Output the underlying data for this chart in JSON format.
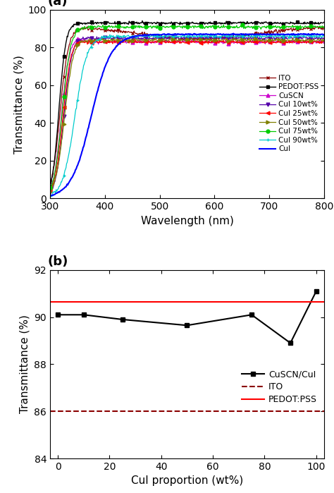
{
  "panel_a": {
    "xlabel": "Wavelength (nm)",
    "ylabel": "Transmittance (%)",
    "xlim": [
      300,
      800
    ],
    "ylim": [
      0,
      100
    ],
    "xticks": [
      300,
      400,
      500,
      600,
      700,
      800
    ],
    "yticks": [
      0,
      20,
      40,
      60,
      80,
      100
    ],
    "label": "(a)",
    "series": {
      "ITO": {
        "color": "#8B0000",
        "marker": "x",
        "markersize": 3.5,
        "linewidth": 0.9,
        "linestyle": "-"
      },
      "PEDOT:PSS": {
        "color": "#000000",
        "marker": "s",
        "markersize": 3.5,
        "linewidth": 1.0,
        "linestyle": "-"
      },
      "CuSCN": {
        "color": "#CC00CC",
        "marker": "^",
        "markersize": 3.5,
        "linewidth": 0.9,
        "linestyle": "-"
      },
      "CuI 10wt%": {
        "color": "#5500AA",
        "marker": "v",
        "markersize": 3.5,
        "linewidth": 0.9,
        "linestyle": "-"
      },
      "CuI 25wt%": {
        "color": "#FF0000",
        "marker": "<",
        "markersize": 3.5,
        "linewidth": 0.9,
        "linestyle": "-"
      },
      "CuI 50wt%": {
        "color": "#808000",
        "marker": ">",
        "markersize": 3.5,
        "linewidth": 0.9,
        "linestyle": "-"
      },
      "CuI 75wt%": {
        "color": "#00CC00",
        "marker": "o",
        "markersize": 3.5,
        "linewidth": 0.9,
        "linestyle": "-"
      },
      "CuI 90wt%": {
        "color": "#00CCCC",
        "marker": "+",
        "markersize": 3.5,
        "linewidth": 0.9,
        "linestyle": "-"
      },
      "CuI": {
        "color": "#0000FF",
        "marker": "None",
        "markersize": 3,
        "linewidth": 1.5,
        "linestyle": "-"
      }
    }
  },
  "panel_b": {
    "xlabel": "CuI proportion (wt%)",
    "ylabel": "Transmittance (%)",
    "xlim": [
      -3,
      103
    ],
    "ylim": [
      84,
      92
    ],
    "xticks": [
      0,
      20,
      40,
      60,
      80,
      100
    ],
    "yticks": [
      84,
      86,
      88,
      90,
      92
    ],
    "label": "(b)",
    "cuscn_cui_x": [
      0,
      10,
      25,
      50,
      75,
      90,
      100
    ],
    "cuscn_cui_y": [
      90.1,
      90.1,
      89.9,
      89.65,
      90.1,
      88.9,
      91.1
    ],
    "ito_y": 86.0,
    "pedot_pss_y": 90.65
  }
}
